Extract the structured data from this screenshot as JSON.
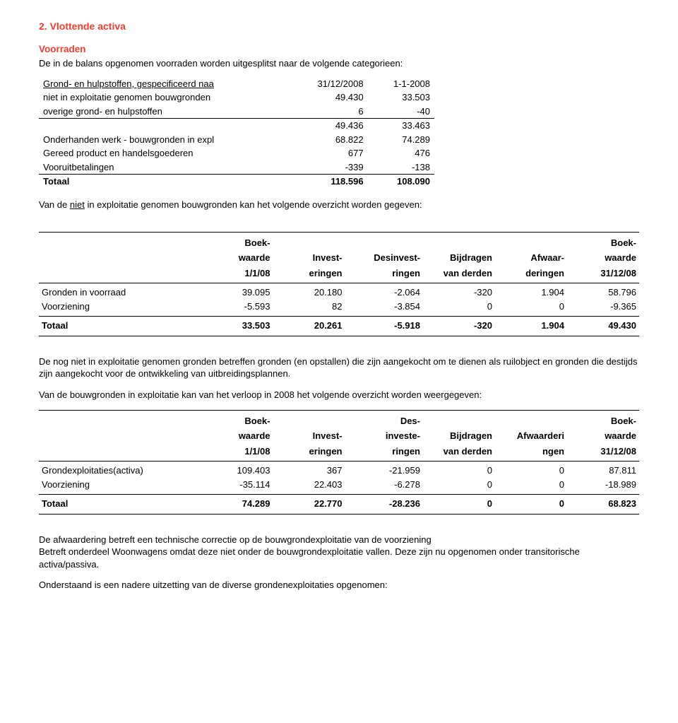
{
  "title": "2. Vlottende activa",
  "section1": {
    "heading": "Voorraden",
    "intro": "De in de balans opgenomen voorraden worden uitgesplitst naar de volgende categorieen:",
    "headers": {
      "c1": "31/12/2008",
      "c2": "1-1-2008"
    },
    "rows": [
      {
        "label": "Grond- en hulpstoffen, gespecificeerd naa",
        "c1": "",
        "c2": "",
        "underline": true
      },
      {
        "label": "niet in exploitatie genomen bouwgronden",
        "c1": "49.430",
        "c2": "33.503"
      },
      {
        "label": "overige grond- en hulpstoffen",
        "c1": "6",
        "c2": "-40",
        "bb": true
      },
      {
        "label": "",
        "c1": "49.436",
        "c2": "33.463"
      },
      {
        "label": "Onderhanden werk - bouwgronden in expl",
        "c1": "68.822",
        "c2": "74.289"
      },
      {
        "label": "Gereed product en handelsgoederen",
        "c1": "677",
        "c2": "476"
      },
      {
        "label": "Vooruitbetalingen",
        "c1": "-339",
        "c2": "-138",
        "bb": true
      }
    ],
    "total": {
      "label": "Totaal",
      "c1": "118.596",
      "c2": "108.090"
    }
  },
  "section2": {
    "intro": "Van de niet in exploitatie genomen bouwgronden kan het volgende overzicht worden gegeven:",
    "intro_underline_word": "niet",
    "cols": [
      [
        "",
        "Boek-",
        "waarde",
        "1/1/08"
      ],
      [
        "",
        "",
        "Invest-",
        "eringen"
      ],
      [
        "",
        "",
        "Desinvest-",
        "ringen"
      ],
      [
        "",
        "",
        "Bijdragen",
        "van derden"
      ],
      [
        "",
        "",
        "Afwaar-",
        "deringen"
      ],
      [
        "",
        "Boek-",
        "waarde",
        "31/12/08"
      ]
    ],
    "rows": [
      {
        "label": "Gronden in voorraad",
        "v": [
          "39.095",
          "20.180",
          "-2.064",
          "-320",
          "1.904",
          "58.796"
        ]
      },
      {
        "label": "Voorziening",
        "v": [
          "-5.593",
          "82",
          "-3.854",
          "0",
          "0",
          "-9.365"
        ]
      }
    ],
    "total": {
      "label": "Totaal",
      "v": [
        "33.503",
        "20.261",
        "-5.918",
        "-320",
        "1.904",
        "49.430"
      ]
    }
  },
  "para_afterT2_1": "De nog niet in exploitatie genomen gronden betreffen gronden (en opstallen) die zijn aangekocht om te dienen als ruilobject en gronden die destijds zijn aangekocht voor de ontwikkeling van uitbreidingsplannen.",
  "para_afterT2_2": "Van de bouwgronden in exploitatie kan van het verloop in 2008 het volgende overzicht worden weergegeven:",
  "section3": {
    "cols": [
      [
        "",
        "Boek-",
        "waarde",
        "1/1/08"
      ],
      [
        "",
        "",
        "Invest-",
        "eringen"
      ],
      [
        "",
        "Des-",
        "investe-",
        "ringen"
      ],
      [
        "",
        "",
        "Bijdragen",
        "van derden"
      ],
      [
        "",
        "",
        "Afwaarderi",
        "ngen"
      ],
      [
        "",
        "Boek-",
        "waarde",
        "31/12/08"
      ]
    ],
    "rows": [
      {
        "label": "Grondexploitaties(activa)",
        "v": [
          "109.403",
          "367",
          "-21.959",
          "0",
          "0",
          "87.811"
        ]
      },
      {
        "label": "Voorziening",
        "v": [
          "-35.114",
          "22.403",
          "-6.278",
          "0",
          "0",
          "-18.989"
        ]
      }
    ],
    "total": {
      "label": "Totaal",
      "v": [
        "74.289",
        "22.770",
        "-28.236",
        "0",
        "0",
        "68.823"
      ]
    }
  },
  "tail": {
    "p1": "De afwaardering betreft een technische correctie op de bouwgrondexploitatie van de voorziening",
    "p2": "Betreft onderdeel Woonwagens omdat deze niet onder de bouwgrondexploitatie vallen. Deze zijn nu opgenomen onder transitorische activa/passiva.",
    "p3": "Onderstaand is een nadere uitzetting van de diverse grondenexploitaties opgenomen:"
  }
}
